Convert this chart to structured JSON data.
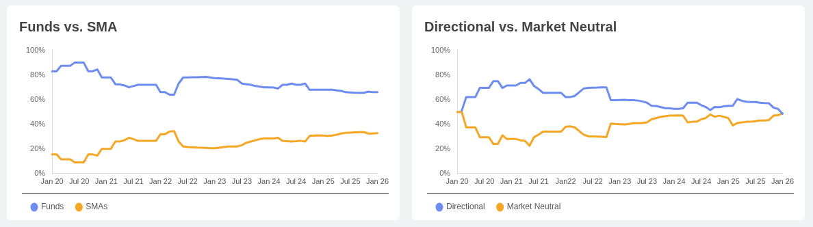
{
  "chart_data": [
    {
      "type": "line",
      "title": "Funds vs. SMA",
      "categories": [
        "Jan 20",
        null,
        null,
        null,
        null,
        null,
        "Jul 20",
        null,
        null,
        null,
        null,
        null,
        "Jan 21",
        null,
        null,
        null,
        null,
        null,
        "Jul 21",
        null,
        null,
        null,
        null,
        null,
        "Jan 22",
        null,
        null,
        null,
        null,
        null,
        "Jul 22",
        null,
        null,
        null,
        null,
        null,
        "Jan 23",
        null,
        null,
        null,
        null,
        null,
        "Jul 23",
        null,
        null,
        null,
        null,
        null,
        "Jan 24",
        null,
        null,
        null,
        null,
        null,
        "Jul 24",
        null,
        null,
        null,
        null,
        null,
        "Jan 25",
        null,
        null,
        null,
        null,
        null,
        "Jul 25",
        null,
        null,
        null,
        null,
        null,
        "Jan 26"
      ],
      "series": [
        {
          "name": "Funds",
          "color": "#6c8cf0",
          "values": [
            83,
            83,
            87.5,
            87.5,
            87.5,
            90,
            90,
            90,
            83,
            83,
            84.5,
            78,
            78,
            78,
            72.5,
            72.3,
            71.5,
            70,
            71,
            72,
            72,
            72,
            72,
            72,
            66,
            66,
            64,
            64,
            73,
            78,
            78,
            78.1,
            78.2,
            78.3,
            78.4,
            78,
            77.5,
            77.3,
            77,
            76.8,
            76.5,
            76,
            73,
            72.5,
            72,
            71,
            70.5,
            70,
            70,
            69.8,
            69,
            72,
            72,
            73,
            72,
            72,
            73,
            68,
            68,
            68,
            68,
            68,
            68,
            67.5,
            67,
            66,
            65.8,
            65.6,
            65.5,
            65.5,
            66.5,
            66,
            66
          ]
        },
        {
          "name": "SMAs",
          "color": "#f5a623",
          "values": [
            15.5,
            15.5,
            11.5,
            11.5,
            11.5,
            9,
            9,
            9,
            15.5,
            15.5,
            14.5,
            20,
            20,
            20,
            26,
            26,
            27,
            29,
            28,
            26.5,
            26.5,
            26.5,
            26.5,
            26.5,
            32,
            32,
            34,
            34.5,
            26,
            22,
            21.5,
            21.3,
            21.1,
            21,
            20.8,
            20.6,
            20.5,
            21,
            21.5,
            22,
            22,
            22,
            23,
            25,
            26,
            27,
            28,
            28.5,
            28.5,
            28.5,
            29,
            26.5,
            26.3,
            26,
            26.2,
            26.6,
            26,
            30.5,
            30.8,
            31,
            30.8,
            30.6,
            30.8,
            31.5,
            32.5,
            33,
            33.2,
            33.4,
            33.6,
            33.6,
            32.5,
            32.5,
            32.8
          ]
        }
      ],
      "ylim": [
        0,
        100
      ],
      "yticks": [
        {
          "value": 0,
          "label": "0%"
        },
        {
          "value": 20,
          "label": "20%"
        },
        {
          "value": 40,
          "label": "40%"
        },
        {
          "value": 60,
          "label": "60%"
        },
        {
          "value": 80,
          "label": "80%"
        },
        {
          "value": 100,
          "label": "100%"
        }
      ],
      "grid": false,
      "legend": "bottom left",
      "marker": "none"
    },
    {
      "type": "line",
      "title": "Directional vs. Market Neutral",
      "categories": [
        "Jan 20",
        null,
        null,
        null,
        null,
        null,
        "Jul 20",
        null,
        null,
        null,
        null,
        null,
        "Jan 21",
        null,
        null,
        null,
        null,
        null,
        "Jul 21",
        null,
        null,
        null,
        null,
        null,
        "Jan22",
        null,
        null,
        null,
        null,
        null,
        "Jul 22",
        null,
        null,
        null,
        null,
        null,
        "Jan 23",
        null,
        null,
        null,
        null,
        null,
        "Jul 23",
        null,
        null,
        null,
        null,
        null,
        "Jan 24",
        null,
        null,
        null,
        null,
        null,
        "Jul 24",
        null,
        null,
        null,
        null,
        null,
        "Jan 25",
        null,
        null,
        null,
        null,
        null,
        "Jul 25",
        null,
        null,
        null,
        null,
        null,
        "Jan 26"
      ],
      "series": [
        {
          "name": "Directional",
          "color": "#6c8cf0",
          "values": [
            null,
            51,
            62,
            62,
            62,
            69.5,
            69.5,
            69.5,
            75,
            75,
            69.5,
            71.5,
            71.5,
            71.5,
            73.5,
            73.5,
            76.5,
            71,
            68.5,
            65.5,
            65.5,
            65.5,
            65.5,
            65.5,
            62,
            62,
            63,
            66,
            69,
            69.5,
            69.7,
            69.8,
            70,
            70,
            59.5,
            59.5,
            59.7,
            59.8,
            59.6,
            59.5,
            59.2,
            58.5,
            57.5,
            55,
            54.8,
            54,
            53,
            53,
            52.5,
            52.5,
            53,
            57.5,
            57.5,
            57.5,
            55.5,
            54,
            51.5,
            54,
            53.8,
            54.5,
            55,
            55,
            60.5,
            59,
            58.3,
            58,
            58,
            57.5,
            57.2,
            57,
            53.5,
            52.5,
            48.5
          ]
        },
        {
          "name": "Market Neutral",
          "color": "#f5a623",
          "values": [
            50,
            50,
            37.5,
            37.5,
            37.5,
            29.5,
            29.5,
            29.5,
            24,
            24,
            31,
            28,
            28,
            28,
            27,
            26.5,
            22.5,
            29.5,
            31.5,
            34,
            34,
            34,
            34,
            34,
            38,
            38.3,
            37.5,
            34.5,
            31.5,
            30.3,
            30.2,
            30,
            29.8,
            29.6,
            40.5,
            40.2,
            40,
            39.8,
            40.3,
            40.8,
            41,
            41,
            41.5,
            44,
            45,
            46,
            46.5,
            47,
            47,
            47.2,
            47,
            41.5,
            42,
            42,
            44,
            45,
            48,
            46,
            47,
            46,
            45,
            39,
            41,
            41.5,
            42,
            42,
            42.5,
            43,
            43,
            43.5,
            47,
            47.3,
            49
          ]
        }
      ],
      "ylim": [
        0,
        100
      ],
      "yticks": [
        {
          "value": 0,
          "label": "0%"
        },
        {
          "value": 20,
          "label": "20%"
        },
        {
          "value": 40,
          "label": "40%"
        },
        {
          "value": 60,
          "label": "60%"
        },
        {
          "value": 80,
          "label": "80%"
        },
        {
          "value": 100,
          "label": "100%"
        }
      ],
      "grid": false,
      "legend": "bottom left",
      "marker": "none"
    }
  ]
}
